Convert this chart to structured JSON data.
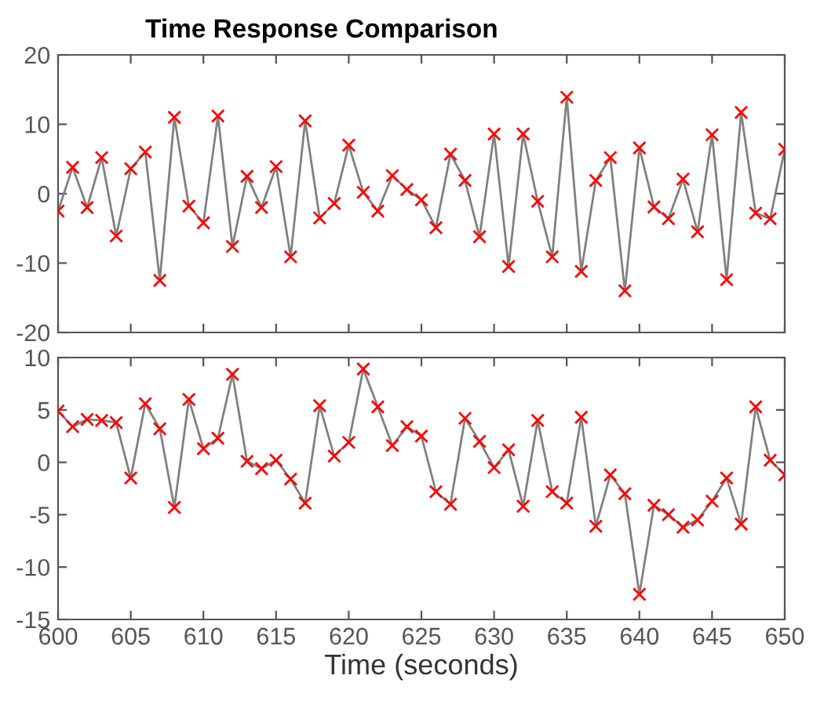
{
  "chart_data": [
    {
      "type": "line",
      "title": "Time Response Comparison",
      "xlim": [
        600,
        650
      ],
      "xticks": [
        600,
        605,
        610,
        615,
        620,
        625,
        630,
        635,
        640,
        645,
        650
      ],
      "ylim": [
        -20,
        20
      ],
      "yticks": [
        -20,
        -10,
        0,
        10,
        20
      ],
      "tick_labels": "y",
      "grid": false,
      "legend": false,
      "x": [
        600,
        601,
        602,
        603,
        604,
        605,
        606,
        607,
        608,
        609,
        610,
        611,
        612,
        613,
        614,
        615,
        616,
        617,
        618,
        619,
        620,
        621,
        622,
        623,
        624,
        625,
        626,
        627,
        628,
        629,
        630,
        631,
        632,
        633,
        634,
        635,
        636,
        637,
        638,
        639,
        640,
        641,
        642,
        643,
        644,
        645,
        646,
        647,
        648,
        649,
        650
      ],
      "series": [
        {
          "marker": "none",
          "color": "#808080",
          "values": [
            -2.5,
            3.8,
            -2.0,
            5.2,
            -6.1,
            3.6,
            6.0,
            -12.5,
            11.0,
            -1.8,
            -4.2,
            11.2,
            -7.6,
            2.5,
            -2.0,
            3.9,
            -9.1,
            10.5,
            -3.5,
            -1.4,
            7.0,
            0.2,
            -2.5,
            2.6,
            0.6,
            -0.9,
            -4.9,
            5.7,
            1.9,
            -6.2,
            8.6,
            -10.5,
            8.6,
            -1.1,
            -9.1,
            13.9,
            -11.2,
            1.9,
            5.2,
            -14.0,
            6.6,
            -1.9,
            -3.6,
            2.1,
            -5.5,
            8.5,
            -12.4,
            11.7,
            -2.8,
            -3.6,
            6.4
          ]
        },
        {
          "type": "scatter",
          "marker": "cross",
          "color": "#ff0000",
          "values": [
            -2.5,
            3.8,
            -2.0,
            5.2,
            -6.1,
            3.6,
            6.0,
            -12.5,
            11.0,
            -1.8,
            -4.2,
            11.2,
            -7.6,
            2.5,
            -2.0,
            3.9,
            -9.1,
            10.5,
            -3.5,
            -1.4,
            7.0,
            0.2,
            -2.5,
            2.6,
            0.6,
            -0.9,
            -4.9,
            5.7,
            1.9,
            -6.2,
            8.6,
            -10.5,
            8.6,
            -1.1,
            -9.1,
            13.9,
            -11.2,
            1.9,
            5.2,
            -14.0,
            6.6,
            -1.9,
            -3.6,
            2.1,
            -5.5,
            8.5,
            -12.4,
            11.7,
            -2.8,
            -3.6,
            6.4
          ]
        }
      ]
    },
    {
      "type": "line",
      "xlabel": "Time (seconds)",
      "xlim": [
        600,
        650
      ],
      "xticks": [
        600,
        605,
        610,
        615,
        620,
        625,
        630,
        635,
        640,
        645,
        650
      ],
      "ylim": [
        -15,
        10
      ],
      "yticks": [
        -15,
        -10,
        -5,
        0,
        5,
        10
      ],
      "grid": false,
      "legend": false,
      "x": [
        600,
        601,
        602,
        603,
        604,
        605,
        606,
        607,
        608,
        609,
        610,
        611,
        612,
        613,
        614,
        615,
        616,
        617,
        618,
        619,
        620,
        621,
        622,
        623,
        624,
        625,
        626,
        627,
        628,
        629,
        630,
        631,
        632,
        633,
        634,
        635,
        636,
        637,
        638,
        639,
        640,
        641,
        642,
        643,
        644,
        645,
        646,
        647,
        648,
        649,
        650
      ],
      "series": [
        {
          "marker": "none",
          "color": "#808080",
          "values": [
            4.9,
            3.4,
            4.1,
            4.0,
            3.8,
            -1.5,
            5.6,
            3.2,
            -4.3,
            6.0,
            1.3,
            2.3,
            8.4,
            0.1,
            -0.6,
            0.2,
            -1.6,
            -3.9,
            5.4,
            0.6,
            1.9,
            8.9,
            5.3,
            1.6,
            3.4,
            2.5,
            -2.8,
            -4.0,
            4.2,
            2.0,
            -0.5,
            1.2,
            -4.2,
            4.0,
            -2.8,
            -3.9,
            4.3,
            -6.1,
            -1.2,
            -3.0,
            -12.6,
            -4.1,
            -5.0,
            -6.2,
            -5.5,
            -3.7,
            -1.5,
            -5.9,
            5.3,
            0.2,
            -1.2
          ]
        },
        {
          "type": "scatter",
          "marker": "cross",
          "color": "#ff0000",
          "values": [
            4.9,
            3.4,
            4.1,
            4.0,
            3.8,
            -1.5,
            5.6,
            3.2,
            -4.3,
            6.0,
            1.3,
            2.3,
            8.4,
            0.1,
            -0.6,
            0.2,
            -1.6,
            -3.9,
            5.4,
            0.6,
            1.9,
            8.9,
            5.3,
            1.6,
            3.4,
            2.5,
            -2.8,
            -4.0,
            4.2,
            2.0,
            -0.5,
            1.2,
            -4.2,
            4.0,
            -2.8,
            -3.9,
            4.3,
            -6.1,
            -1.2,
            -3.0,
            -12.6,
            -4.1,
            -5.0,
            -6.2,
            -5.5,
            -3.7,
            -1.5,
            -5.9,
            5.3,
            0.2,
            -1.2
          ]
        }
      ]
    }
  ]
}
